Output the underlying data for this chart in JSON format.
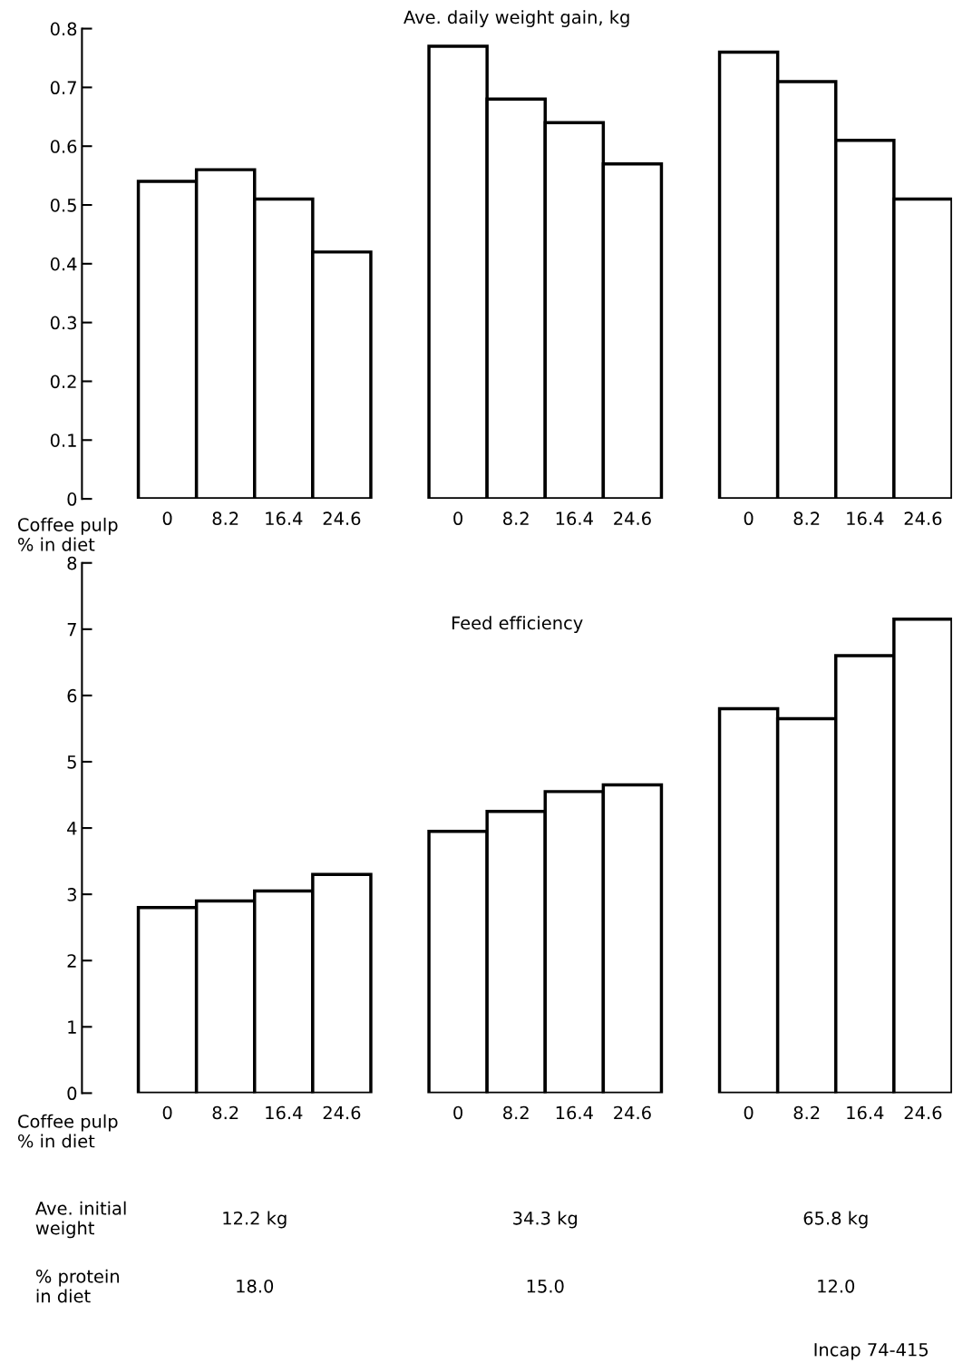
{
  "chart_data": [
    {
      "type": "bar",
      "title": "Ave. daily weight gain, kg",
      "xlabel": "Coffee pulp\n% in diet",
      "categories": [
        "0",
        "8.2",
        "16.4",
        "24.6",
        null,
        "0",
        "8.2",
        "16.4",
        "24.6",
        null,
        "0",
        "8.2",
        "16.4",
        "24.6"
      ],
      "values": [
        0.54,
        0.56,
        0.51,
        0.42,
        null,
        0.77,
        0.68,
        0.64,
        0.57,
        null,
        0.76,
        0.71,
        0.61,
        0.51
      ],
      "color": "#ffffff",
      "ylim": [
        0,
        0.8
      ],
      "yticks": [
        {
          "value": 0,
          "label": "0"
        },
        0.1,
        0.2,
        0.3,
        0.4,
        0.5,
        0.6,
        0.7,
        0.8
      ],
      "grid": false,
      "legend": false
    },
    {
      "type": "bar",
      "title": "Feed efficiency",
      "xlabel": "Coffee pulp\n% in diet",
      "categories": [
        "0",
        "8.2",
        "16.4",
        "24.6",
        null,
        "0",
        "8.2",
        "16.4",
        "24.6",
        null,
        "0",
        "8.2",
        "16.4",
        "24.6"
      ],
      "values": [
        2.8,
        2.9,
        3.05,
        3.3,
        null,
        3.95,
        4.25,
        4.55,
        4.65,
        null,
        5.8,
        5.65,
        6.6,
        7.15
      ],
      "color": "#ffffff",
      "ylim": [
        0,
        8
      ],
      "yticks": [
        0,
        1,
        2,
        3,
        4,
        5,
        6,
        7,
        8
      ],
      "grid": false,
      "legend": false,
      "annotations": [
        "Ave. initial\nweight",
        "12.2 kg",
        "34.3 kg",
        "65.8 kg",
        "% protein\nin diet",
        "18.0",
        "15.0",
        "12.0",
        "Incap 74-415"
      ]
    }
  ]
}
